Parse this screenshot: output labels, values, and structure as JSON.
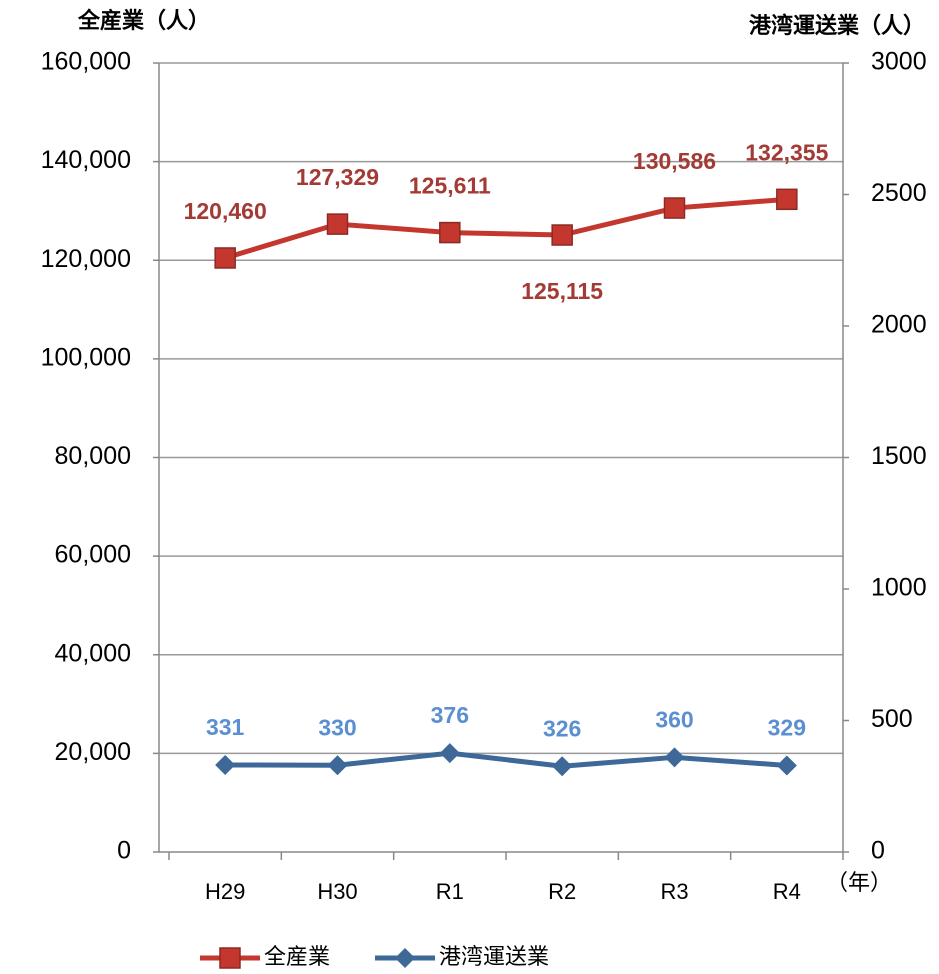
{
  "chart_data": {
    "type": "line",
    "y_axis_label": "全産業（人）",
    "y2_axis_label": "港湾運送業（人）",
    "x_axis_label": "（年）",
    "categories": [
      "H29",
      "H30",
      "R1",
      "R2",
      "R3",
      "R4"
    ],
    "series": [
      {
        "name": "全産業",
        "color": "#c4372f",
        "marker": "square",
        "axis": "y",
        "values": [
          120460,
          127329,
          125611,
          125115,
          130586,
          132355
        ],
        "value_labels": [
          "120,460",
          "127,329",
          "125,611",
          "125,115",
          "130,586",
          "132,355"
        ]
      },
      {
        "name": "港湾運送業",
        "color": "#3d6897",
        "marker": "diamond",
        "axis": "y2",
        "values": [
          331,
          330,
          376,
          326,
          360,
          329
        ]
      }
    ],
    "ylim": [
      0,
      160000
    ],
    "yticks": [
      0,
      {
        "value": 20000,
        "label": "20,000"
      },
      {
        "value": 40000,
        "label": "40,000"
      },
      {
        "value": 60000,
        "label": "60,000"
      },
      {
        "value": 80000,
        "label": "80,000"
      },
      {
        "value": 100000,
        "label": "100,000"
      },
      {
        "value": 120000,
        "label": "120,000"
      },
      {
        "value": 140000,
        "label": "140,000"
      },
      {
        "value": 160000,
        "label": "160,000"
      }
    ],
    "y2lim": [
      0,
      3000
    ],
    "y2ticks": [
      0,
      500,
      1000,
      1500,
      2000,
      2500,
      3000
    ],
    "grid": true,
    "legend": "bottom"
  }
}
